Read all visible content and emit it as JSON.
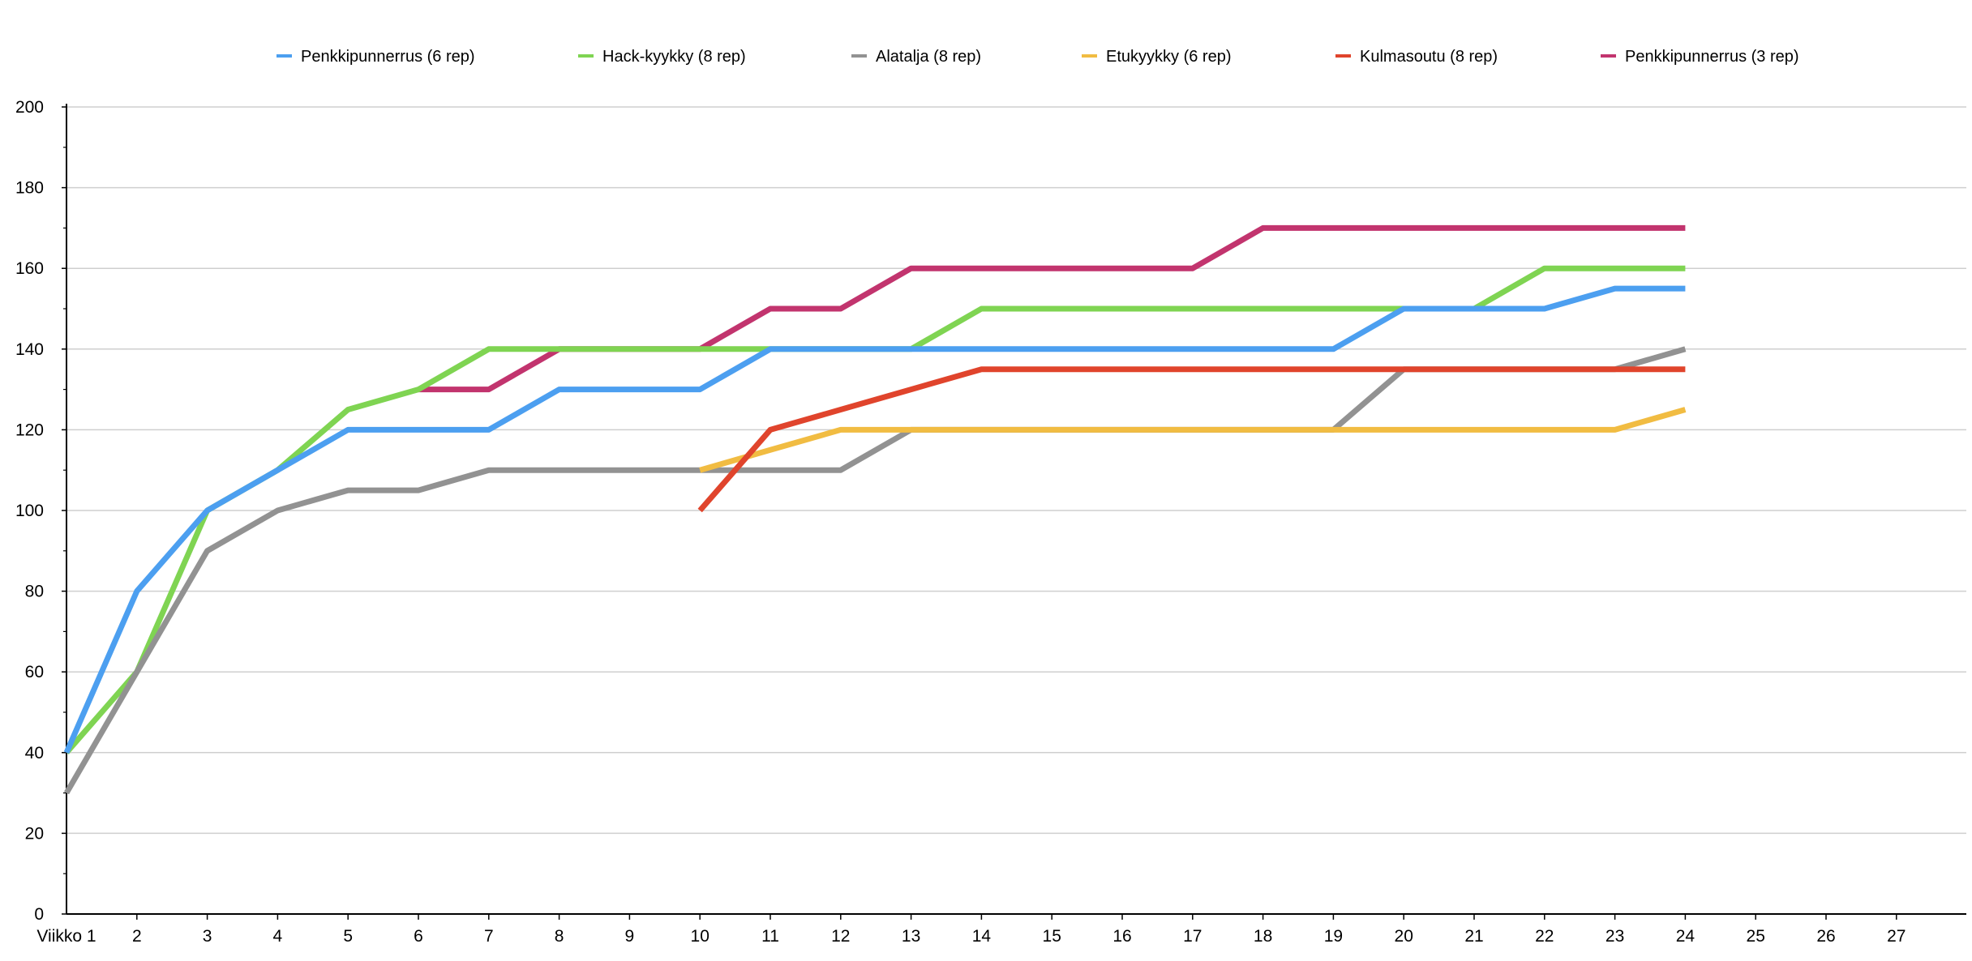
{
  "chart_data": {
    "type": "line",
    "x": [
      "Viikko 1",
      "2",
      "3",
      "4",
      "5",
      "6",
      "7",
      "8",
      "9",
      "10",
      "11",
      "12",
      "13",
      "14",
      "15",
      "16",
      "17",
      "18",
      "19",
      "20",
      "21",
      "22",
      "23",
      "24",
      "25",
      "26",
      "27"
    ],
    "ylim": [
      0,
      200
    ],
    "yticks": [
      0,
      20,
      40,
      60,
      80,
      100,
      120,
      140,
      160,
      180,
      200
    ],
    "grid": true,
    "legend_position": "top",
    "title": "",
    "xlabel": "",
    "ylabel": "",
    "series": [
      {
        "name": "Penkkipunnerrus (3 rep)",
        "color": "#c2346e",
        "values": [
          null,
          null,
          null,
          null,
          null,
          130,
          130,
          140,
          140,
          140,
          150,
          150,
          160,
          160,
          160,
          160,
          160,
          170,
          170,
          170,
          170,
          170,
          170,
          170,
          null,
          null,
          null
        ]
      },
      {
        "name": "Hack-kyykky (8 rep)",
        "color": "#7fd452",
        "values": [
          40,
          60,
          100,
          110,
          125,
          130,
          140,
          140,
          140,
          140,
          140,
          140,
          140,
          150,
          150,
          150,
          150,
          150,
          150,
          150,
          150,
          160,
          160,
          160,
          null,
          null,
          null
        ]
      },
      {
        "name": "Alatalja (8 rep)",
        "color": "#929292",
        "values": [
          30,
          60,
          90,
          100,
          105,
          105,
          110,
          110,
          110,
          110,
          110,
          110,
          120,
          120,
          120,
          120,
          120,
          120,
          120,
          135,
          135,
          135,
          135,
          140,
          null,
          null,
          null
        ]
      },
      {
        "name": "Etukyykky (6 rep)",
        "color": "#f1bc42",
        "values": [
          null,
          null,
          null,
          null,
          null,
          null,
          null,
          null,
          null,
          110,
          115,
          120,
          120,
          120,
          120,
          120,
          120,
          120,
          120,
          120,
          120,
          120,
          120,
          125,
          null,
          null,
          null
        ]
      },
      {
        "name": "Kulmasoutu (8 rep)",
        "color": "#e0442c",
        "values": [
          null,
          null,
          null,
          null,
          null,
          null,
          null,
          null,
          null,
          100,
          120,
          125,
          130,
          135,
          135,
          135,
          135,
          135,
          135,
          135,
          135,
          135,
          135,
          135,
          null,
          null,
          null
        ]
      },
      {
        "name": "Penkkipunnerrus (6 rep)",
        "color": "#4c9ff0",
        "values": [
          40,
          80,
          100,
          110,
          120,
          120,
          120,
          130,
          130,
          130,
          140,
          140,
          140,
          140,
          140,
          140,
          140,
          140,
          140,
          150,
          150,
          150,
          155,
          155,
          null,
          null,
          null
        ]
      }
    ],
    "legend_order": [
      5,
      1,
      2,
      3,
      4,
      0
    ]
  }
}
